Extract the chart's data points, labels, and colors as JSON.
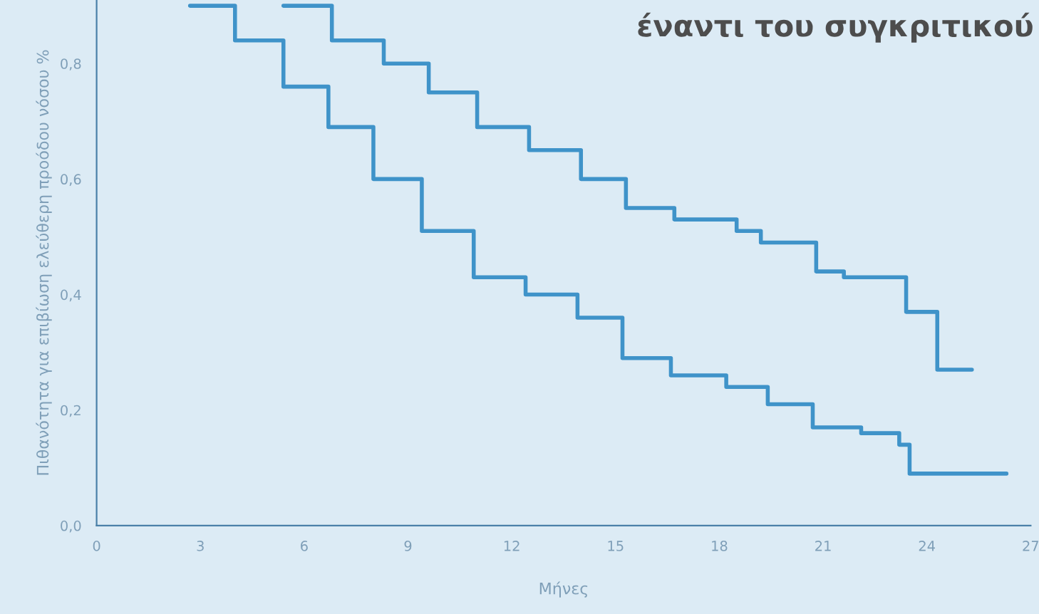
{
  "chart_data": {
    "type": "step",
    "title": "έναντι του συγκριτικού",
    "xlabel": "Μήνες",
    "ylabel": "Πιθανότητα για επιβίωση ελεύθερη προόδου νόσου %",
    "series": [
      {
        "color": "#3f93c9",
        "x": [
          5.4,
          6.8,
          8.3,
          9.6,
          11.0,
          12.5,
          14.0,
          15.3,
          16.7,
          18.5,
          19.2,
          20.8,
          21.6,
          23.4,
          24.3,
          25.3
        ],
        "values": [
          0.9,
          0.84,
          0.8,
          0.75,
          0.69,
          0.65,
          0.6,
          0.55,
          0.53,
          0.51,
          0.49,
          0.44,
          0.43,
          0.37,
          0.27,
          0.27
        ]
      },
      {
        "color": "#3f93c9",
        "x": [
          2.7,
          4.0,
          5.4,
          6.7,
          8.0,
          9.4,
          10.9,
          12.4,
          13.9,
          15.2,
          16.6,
          18.2,
          19.4,
          20.7,
          22.1,
          23.2,
          23.5,
          26.3
        ],
        "values": [
          0.9,
          0.84,
          0.76,
          0.69,
          0.6,
          0.51,
          0.43,
          0.4,
          0.36,
          0.29,
          0.26,
          0.24,
          0.21,
          0.17,
          0.16,
          0.14,
          0.09,
          0.09
        ]
      }
    ],
    "xlim": [
      0,
      27
    ],
    "xticks": [
      0,
      3,
      6,
      9,
      12,
      15,
      18,
      21,
      24,
      27
    ],
    "ylim": [
      0,
      0.91
    ],
    "yticks": [
      {
        "value": 0,
        "label": "0,0"
      },
      {
        "value": 0.2,
        "label": "0,2"
      },
      {
        "value": 0.4,
        "label": "0,4"
      },
      {
        "value": 0.6,
        "label": "0,6"
      },
      {
        "value": 0.8,
        "label": "0,8"
      }
    ],
    "grid": false,
    "legend": false
  }
}
